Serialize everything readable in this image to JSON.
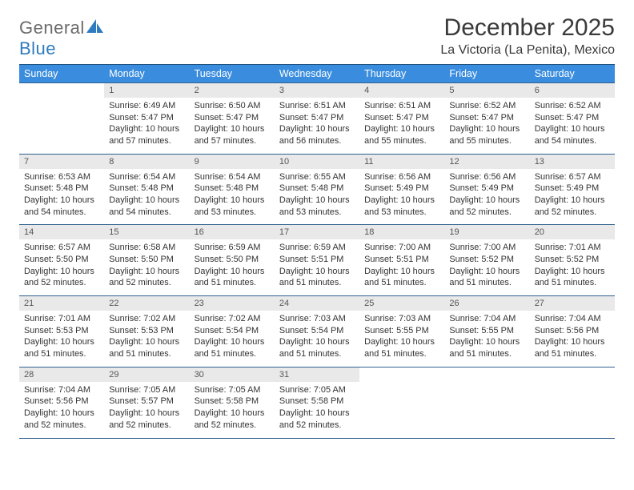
{
  "logo": {
    "text_general": "General",
    "text_blue": "Blue"
  },
  "title": "December 2025",
  "location": "La Victoria (La Penita), Mexico",
  "grid": {
    "text_color": "#333333",
    "header_bg": "#3a8dde",
    "header_text_color": "#ffffff",
    "daynum_bg": "#e9e9e9",
    "border_color": "#2f608f",
    "font_size_header": 12.5,
    "font_size_daynum": 11,
    "font_size_body": 10.9
  },
  "day_headers": [
    "Sunday",
    "Monday",
    "Tuesday",
    "Wednesday",
    "Thursday",
    "Friday",
    "Saturday"
  ],
  "weeks": [
    {
      "nums": [
        "",
        "1",
        "2",
        "3",
        "4",
        "5",
        "6"
      ],
      "cells": [
        null,
        {
          "sunrise": "6:49 AM",
          "sunset": "5:47 PM",
          "daylight": "10 hours and 57 minutes."
        },
        {
          "sunrise": "6:50 AM",
          "sunset": "5:47 PM",
          "daylight": "10 hours and 57 minutes."
        },
        {
          "sunrise": "6:51 AM",
          "sunset": "5:47 PM",
          "daylight": "10 hours and 56 minutes."
        },
        {
          "sunrise": "6:51 AM",
          "sunset": "5:47 PM",
          "daylight": "10 hours and 55 minutes."
        },
        {
          "sunrise": "6:52 AM",
          "sunset": "5:47 PM",
          "daylight": "10 hours and 55 minutes."
        },
        {
          "sunrise": "6:52 AM",
          "sunset": "5:47 PM",
          "daylight": "10 hours and 54 minutes."
        }
      ]
    },
    {
      "nums": [
        "7",
        "8",
        "9",
        "10",
        "11",
        "12",
        "13"
      ],
      "cells": [
        {
          "sunrise": "6:53 AM",
          "sunset": "5:48 PM",
          "daylight": "10 hours and 54 minutes."
        },
        {
          "sunrise": "6:54 AM",
          "sunset": "5:48 PM",
          "daylight": "10 hours and 54 minutes."
        },
        {
          "sunrise": "6:54 AM",
          "sunset": "5:48 PM",
          "daylight": "10 hours and 53 minutes."
        },
        {
          "sunrise": "6:55 AM",
          "sunset": "5:48 PM",
          "daylight": "10 hours and 53 minutes."
        },
        {
          "sunrise": "6:56 AM",
          "sunset": "5:49 PM",
          "daylight": "10 hours and 53 minutes."
        },
        {
          "sunrise": "6:56 AM",
          "sunset": "5:49 PM",
          "daylight": "10 hours and 52 minutes."
        },
        {
          "sunrise": "6:57 AM",
          "sunset": "5:49 PM",
          "daylight": "10 hours and 52 minutes."
        }
      ]
    },
    {
      "nums": [
        "14",
        "15",
        "16",
        "17",
        "18",
        "19",
        "20"
      ],
      "cells": [
        {
          "sunrise": "6:57 AM",
          "sunset": "5:50 PM",
          "daylight": "10 hours and 52 minutes."
        },
        {
          "sunrise": "6:58 AM",
          "sunset": "5:50 PM",
          "daylight": "10 hours and 52 minutes."
        },
        {
          "sunrise": "6:59 AM",
          "sunset": "5:50 PM",
          "daylight": "10 hours and 51 minutes."
        },
        {
          "sunrise": "6:59 AM",
          "sunset": "5:51 PM",
          "daylight": "10 hours and 51 minutes."
        },
        {
          "sunrise": "7:00 AM",
          "sunset": "5:51 PM",
          "daylight": "10 hours and 51 minutes."
        },
        {
          "sunrise": "7:00 AM",
          "sunset": "5:52 PM",
          "daylight": "10 hours and 51 minutes."
        },
        {
          "sunrise": "7:01 AM",
          "sunset": "5:52 PM",
          "daylight": "10 hours and 51 minutes."
        }
      ]
    },
    {
      "nums": [
        "21",
        "22",
        "23",
        "24",
        "25",
        "26",
        "27"
      ],
      "cells": [
        {
          "sunrise": "7:01 AM",
          "sunset": "5:53 PM",
          "daylight": "10 hours and 51 minutes."
        },
        {
          "sunrise": "7:02 AM",
          "sunset": "5:53 PM",
          "daylight": "10 hours and 51 minutes."
        },
        {
          "sunrise": "7:02 AM",
          "sunset": "5:54 PM",
          "daylight": "10 hours and 51 minutes."
        },
        {
          "sunrise": "7:03 AM",
          "sunset": "5:54 PM",
          "daylight": "10 hours and 51 minutes."
        },
        {
          "sunrise": "7:03 AM",
          "sunset": "5:55 PM",
          "daylight": "10 hours and 51 minutes."
        },
        {
          "sunrise": "7:04 AM",
          "sunset": "5:55 PM",
          "daylight": "10 hours and 51 minutes."
        },
        {
          "sunrise": "7:04 AM",
          "sunset": "5:56 PM",
          "daylight": "10 hours and 51 minutes."
        }
      ]
    },
    {
      "nums": [
        "28",
        "29",
        "30",
        "31",
        "",
        "",
        ""
      ],
      "cells": [
        {
          "sunrise": "7:04 AM",
          "sunset": "5:56 PM",
          "daylight": "10 hours and 52 minutes."
        },
        {
          "sunrise": "7:05 AM",
          "sunset": "5:57 PM",
          "daylight": "10 hours and 52 minutes."
        },
        {
          "sunrise": "7:05 AM",
          "sunset": "5:58 PM",
          "daylight": "10 hours and 52 minutes."
        },
        {
          "sunrise": "7:05 AM",
          "sunset": "5:58 PM",
          "daylight": "10 hours and 52 minutes."
        },
        null,
        null,
        null
      ]
    }
  ],
  "labels": {
    "sunrise": "Sunrise:",
    "sunset": "Sunset:",
    "daylight": "Daylight:"
  }
}
